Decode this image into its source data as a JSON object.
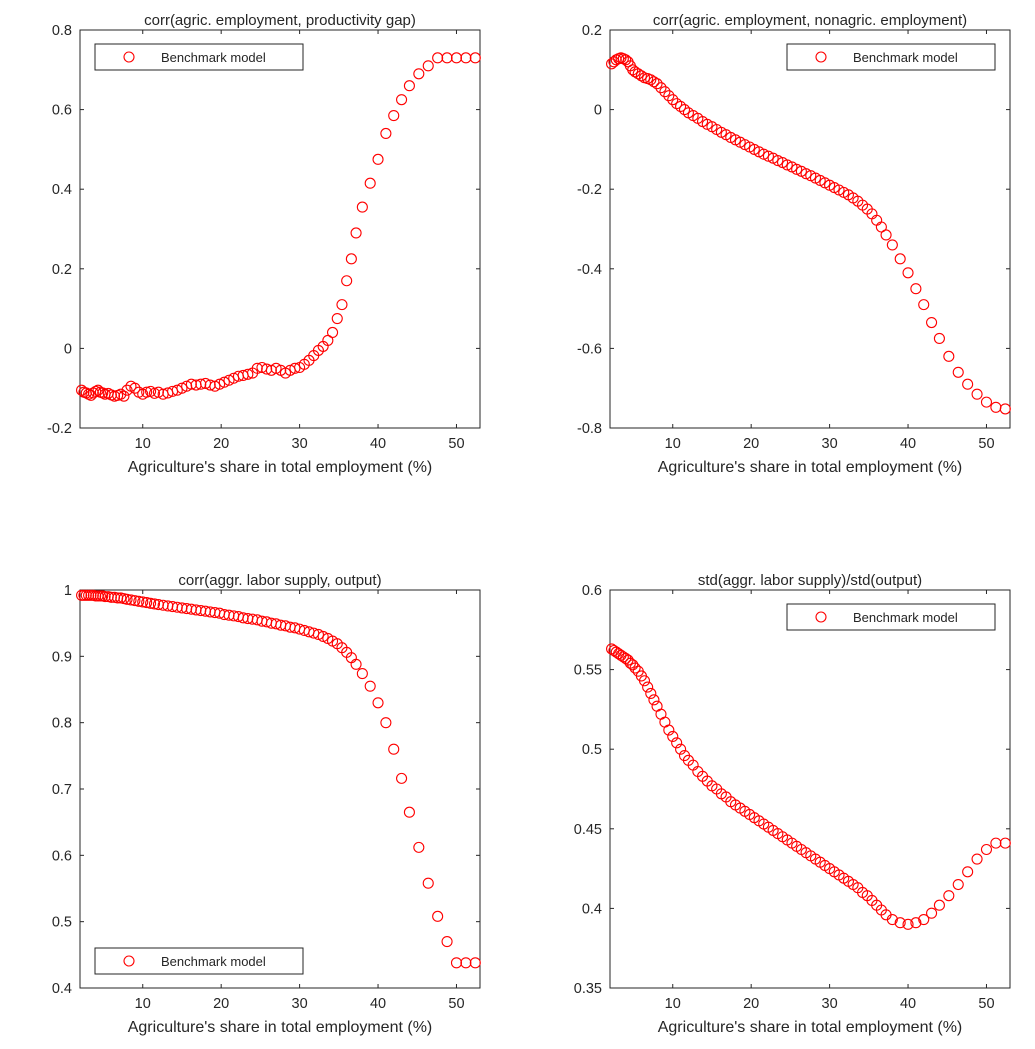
{
  "colors": {
    "series": "#ff0000",
    "axis": "#262626"
  },
  "chart_data": [
    {
      "type": "scatter",
      "title": "corr(agric. employment, productivity gap)",
      "xlabel": "Agriculture's share in total employment (%)",
      "ylabel": "",
      "xlim": [
        2,
        53
      ],
      "ylim": [
        -0.2,
        0.8
      ],
      "xticks": [
        10,
        20,
        30,
        40,
        50
      ],
      "xtick_labels": [
        "10",
        "20",
        "30",
        "40",
        "50"
      ],
      "yticks": [
        -0.2,
        0,
        0.2,
        0.4,
        0.6,
        0.8
      ],
      "ytick_labels": [
        "-0.2",
        "0",
        "0.2",
        "0.4",
        "0.6",
        "0.8"
      ],
      "grid": false,
      "legend": {
        "location": "top-left",
        "entries": [
          "Benchmark model"
        ]
      },
      "series": [
        {
          "name": "Benchmark model",
          "x": [
            2.2,
            2.5,
            2.8,
            3.1,
            3.4,
            3.7,
            4.0,
            4.3,
            4.6,
            4.9,
            5.2,
            5.6,
            6.0,
            6.4,
            6.8,
            7.2,
            7.6,
            8.0,
            8.5,
            9.0,
            9.5,
            10.0,
            10.5,
            11.0,
            11.5,
            12.0,
            12.6,
            13.2,
            13.8,
            14.4,
            15.0,
            15.6,
            16.2,
            16.8,
            17.4,
            18.0,
            18.6,
            19.2,
            19.8,
            20.4,
            21.0,
            21.6,
            22.2,
            22.8,
            23.4,
            24.0,
            24.6,
            25.2,
            25.8,
            26.4,
            27.0,
            27.6,
            28.2,
            28.8,
            29.4,
            30.0,
            30.6,
            31.2,
            31.8,
            32.4,
            33.0,
            33.6,
            34.2,
            34.8,
            35.4,
            36.0,
            36.6,
            37.2,
            38.0,
            39.0,
            40.0,
            41.0,
            42.0,
            43.0,
            44.0,
            45.2,
            46.4,
            47.6,
            48.8,
            50.0,
            51.2,
            52.4
          ],
          "y": [
            -0.105,
            -0.11,
            -0.112,
            -0.115,
            -0.118,
            -0.112,
            -0.108,
            -0.105,
            -0.11,
            -0.112,
            -0.115,
            -0.113,
            -0.117,
            -0.12,
            -0.118,
            -0.115,
            -0.12,
            -0.105,
            -0.095,
            -0.1,
            -0.11,
            -0.115,
            -0.11,
            -0.108,
            -0.113,
            -0.11,
            -0.115,
            -0.112,
            -0.108,
            -0.105,
            -0.1,
            -0.095,
            -0.09,
            -0.092,
            -0.09,
            -0.088,
            -0.092,
            -0.095,
            -0.09,
            -0.085,
            -0.08,
            -0.075,
            -0.07,
            -0.068,
            -0.065,
            -0.062,
            -0.05,
            -0.048,
            -0.052,
            -0.055,
            -0.05,
            -0.055,
            -0.062,
            -0.055,
            -0.05,
            -0.048,
            -0.04,
            -0.03,
            -0.018,
            -0.005,
            0.005,
            0.02,
            0.04,
            0.075,
            0.11,
            0.17,
            0.225,
            0.29,
            0.355,
            0.415,
            0.475,
            0.54,
            0.585,
            0.625,
            0.66,
            0.69,
            0.71,
            0.73,
            0.73,
            0.73,
            0.73,
            0.73
          ]
        }
      ]
    },
    {
      "type": "scatter",
      "title": "corr(agric. employment, nonagric. employment)",
      "xlabel": "Agriculture's share in total employment (%)",
      "ylabel": "",
      "xlim": [
        2,
        53
      ],
      "ylim": [
        -0.8,
        0.2
      ],
      "xticks": [
        10,
        20,
        30,
        40,
        50
      ],
      "xtick_labels": [
        "10",
        "20",
        "30",
        "40",
        "50"
      ],
      "yticks": [
        -0.8,
        -0.6,
        -0.4,
        -0.2,
        0,
        0.2
      ],
      "ytick_labels": [
        "-0.8",
        "-0.6",
        "-0.4",
        "-0.2",
        "0",
        "0.2"
      ],
      "grid": false,
      "legend": {
        "location": "top-right",
        "entries": [
          "Benchmark model"
        ]
      },
      "series": [
        {
          "name": "Benchmark model",
          "x": [
            2.2,
            2.5,
            2.8,
            3.1,
            3.4,
            3.7,
            4.0,
            4.3,
            4.6,
            4.9,
            5.2,
            5.6,
            6.0,
            6.4,
            6.8,
            7.2,
            7.6,
            8.0,
            8.5,
            9.0,
            9.5,
            10.0,
            10.5,
            11.0,
            11.5,
            12.0,
            12.6,
            13.2,
            13.8,
            14.4,
            15.0,
            15.6,
            16.2,
            16.8,
            17.4,
            18.0,
            18.6,
            19.2,
            19.8,
            20.4,
            21.0,
            21.6,
            22.2,
            22.8,
            23.4,
            24.0,
            24.6,
            25.2,
            25.8,
            26.4,
            27.0,
            27.6,
            28.2,
            28.8,
            29.4,
            30.0,
            30.6,
            31.2,
            31.8,
            32.4,
            33.0,
            33.6,
            34.2,
            34.8,
            35.4,
            36.0,
            36.6,
            37.2,
            38.0,
            39.0,
            40.0,
            41.0,
            42.0,
            43.0,
            44.0,
            45.2,
            46.4,
            47.6,
            48.8,
            50.0,
            51.2,
            52.4
          ],
          "y": [
            0.115,
            0.12,
            0.125,
            0.128,
            0.13,
            0.128,
            0.125,
            0.12,
            0.11,
            0.1,
            0.095,
            0.09,
            0.085,
            0.08,
            0.078,
            0.075,
            0.07,
            0.065,
            0.055,
            0.045,
            0.035,
            0.025,
            0.015,
            0.008,
            0.0,
            -0.008,
            -0.015,
            -0.022,
            -0.03,
            -0.037,
            -0.043,
            -0.05,
            -0.057,
            -0.063,
            -0.07,
            -0.076,
            -0.082,
            -0.088,
            -0.094,
            -0.1,
            -0.106,
            -0.112,
            -0.117,
            -0.122,
            -0.128,
            -0.133,
            -0.139,
            -0.144,
            -0.15,
            -0.155,
            -0.161,
            -0.166,
            -0.172,
            -0.178,
            -0.184,
            -0.19,
            -0.196,
            -0.202,
            -0.208,
            -0.214,
            -0.222,
            -0.23,
            -0.24,
            -0.25,
            -0.262,
            -0.278,
            -0.295,
            -0.315,
            -0.34,
            -0.375,
            -0.41,
            -0.45,
            -0.49,
            -0.535,
            -0.575,
            -0.62,
            -0.66,
            -0.69,
            -0.715,
            -0.735,
            -0.748,
            -0.752
          ]
        }
      ]
    },
    {
      "type": "scatter",
      "title": "corr(aggr. labor supply, output)",
      "xlabel": "Agriculture's share in total employment (%)",
      "ylabel": "",
      "xlim": [
        2,
        53
      ],
      "ylim": [
        0.4,
        1.0
      ],
      "xticks": [
        10,
        20,
        30,
        40,
        50
      ],
      "xtick_labels": [
        "10",
        "20",
        "30",
        "40",
        "50"
      ],
      "yticks": [
        0.4,
        0.5,
        0.6,
        0.7,
        0.8,
        0.9,
        1.0
      ],
      "ytick_labels": [
        "0.4",
        "0.5",
        "0.6",
        "0.7",
        "0.8",
        "0.9",
        "1"
      ],
      "grid": false,
      "legend": {
        "location": "bottom-left",
        "entries": [
          "Benchmark model"
        ]
      },
      "series": [
        {
          "name": "Benchmark model",
          "x": [
            2.2,
            2.5,
            2.8,
            3.1,
            3.4,
            3.7,
            4.0,
            4.3,
            4.6,
            4.9,
            5.2,
            5.6,
            6.0,
            6.4,
            6.8,
            7.2,
            7.6,
            8.0,
            8.5,
            9.0,
            9.5,
            10.0,
            10.5,
            11.0,
            11.5,
            12.0,
            12.6,
            13.2,
            13.8,
            14.4,
            15.0,
            15.6,
            16.2,
            16.8,
            17.4,
            18.0,
            18.6,
            19.2,
            19.8,
            20.4,
            21.0,
            21.6,
            22.2,
            22.8,
            23.4,
            24.0,
            24.6,
            25.2,
            25.8,
            26.4,
            27.0,
            27.6,
            28.2,
            28.8,
            29.4,
            30.0,
            30.6,
            31.2,
            31.8,
            32.4,
            33.0,
            33.6,
            34.2,
            34.8,
            35.4,
            36.0,
            36.6,
            37.2,
            38.0,
            39.0,
            40.0,
            41.0,
            42.0,
            43.0,
            44.0,
            45.2,
            46.4,
            47.6,
            48.8,
            50.0,
            51.2,
            52.4
          ],
          "y": [
            0.992,
            0.992,
            0.992,
            0.992,
            0.992,
            0.992,
            0.991,
            0.991,
            0.991,
            0.991,
            0.99,
            0.99,
            0.989,
            0.989,
            0.988,
            0.988,
            0.987,
            0.986,
            0.985,
            0.984,
            0.983,
            0.982,
            0.981,
            0.98,
            0.979,
            0.978,
            0.977,
            0.976,
            0.975,
            0.974,
            0.973,
            0.972,
            0.971,
            0.97,
            0.969,
            0.968,
            0.967,
            0.966,
            0.965,
            0.963,
            0.962,
            0.961,
            0.96,
            0.958,
            0.957,
            0.956,
            0.955,
            0.953,
            0.952,
            0.95,
            0.949,
            0.947,
            0.946,
            0.944,
            0.943,
            0.941,
            0.939,
            0.937,
            0.935,
            0.933,
            0.93,
            0.927,
            0.923,
            0.919,
            0.913,
            0.906,
            0.898,
            0.888,
            0.874,
            0.855,
            0.83,
            0.8,
            0.76,
            0.716,
            0.665,
            0.612,
            0.558,
            0.508,
            0.47,
            0.438,
            0.438,
            0.438
          ]
        }
      ]
    },
    {
      "type": "scatter",
      "title": "std(aggr. labor supply)/std(output)",
      "xlabel": "Agriculture's share in total employment (%)",
      "ylabel": "",
      "xlim": [
        2,
        53
      ],
      "ylim": [
        0.35,
        0.6
      ],
      "xticks": [
        10,
        20,
        30,
        40,
        50
      ],
      "xtick_labels": [
        "10",
        "20",
        "30",
        "40",
        "50"
      ],
      "yticks": [
        0.35,
        0.4,
        0.45,
        0.5,
        0.55,
        0.6
      ],
      "ytick_labels": [
        "0.35",
        "0.4",
        "0.45",
        "0.5",
        "0.55",
        "0.6"
      ],
      "grid": false,
      "legend": {
        "location": "top-right",
        "entries": [
          "Benchmark model"
        ]
      },
      "series": [
        {
          "name": "Benchmark model",
          "x": [
            2.2,
            2.5,
            2.8,
            3.1,
            3.4,
            3.7,
            4.0,
            4.3,
            4.6,
            4.9,
            5.2,
            5.6,
            6.0,
            6.4,
            6.8,
            7.2,
            7.6,
            8.0,
            8.5,
            9.0,
            9.5,
            10.0,
            10.5,
            11.0,
            11.5,
            12.0,
            12.6,
            13.2,
            13.8,
            14.4,
            15.0,
            15.6,
            16.2,
            16.8,
            17.4,
            18.0,
            18.6,
            19.2,
            19.8,
            20.4,
            21.0,
            21.6,
            22.2,
            22.8,
            23.4,
            24.0,
            24.6,
            25.2,
            25.8,
            26.4,
            27.0,
            27.6,
            28.2,
            28.8,
            29.4,
            30.0,
            30.6,
            31.2,
            31.8,
            32.4,
            33.0,
            33.6,
            34.2,
            34.8,
            35.4,
            36.0,
            36.6,
            37.2,
            38.0,
            39.0,
            40.0,
            41.0,
            42.0,
            43.0,
            44.0,
            45.2,
            46.4,
            47.6,
            48.8,
            50.0,
            51.2,
            52.4
          ],
          "y": [
            0.563,
            0.562,
            0.561,
            0.56,
            0.559,
            0.558,
            0.557,
            0.556,
            0.554,
            0.553,
            0.551,
            0.549,
            0.546,
            0.543,
            0.539,
            0.535,
            0.531,
            0.527,
            0.522,
            0.517,
            0.512,
            0.508,
            0.504,
            0.5,
            0.496,
            0.493,
            0.49,
            0.486,
            0.483,
            0.48,
            0.477,
            0.475,
            0.472,
            0.47,
            0.467,
            0.465,
            0.463,
            0.461,
            0.459,
            0.457,
            0.455,
            0.453,
            0.451,
            0.449,
            0.447,
            0.445,
            0.443,
            0.441,
            0.439,
            0.437,
            0.435,
            0.433,
            0.431,
            0.429,
            0.427,
            0.425,
            0.423,
            0.421,
            0.419,
            0.417,
            0.415,
            0.413,
            0.41,
            0.408,
            0.405,
            0.402,
            0.399,
            0.396,
            0.393,
            0.391,
            0.39,
            0.391,
            0.393,
            0.397,
            0.402,
            0.408,
            0.415,
            0.423,
            0.431,
            0.437,
            0.441,
            0.441
          ]
        }
      ]
    }
  ]
}
